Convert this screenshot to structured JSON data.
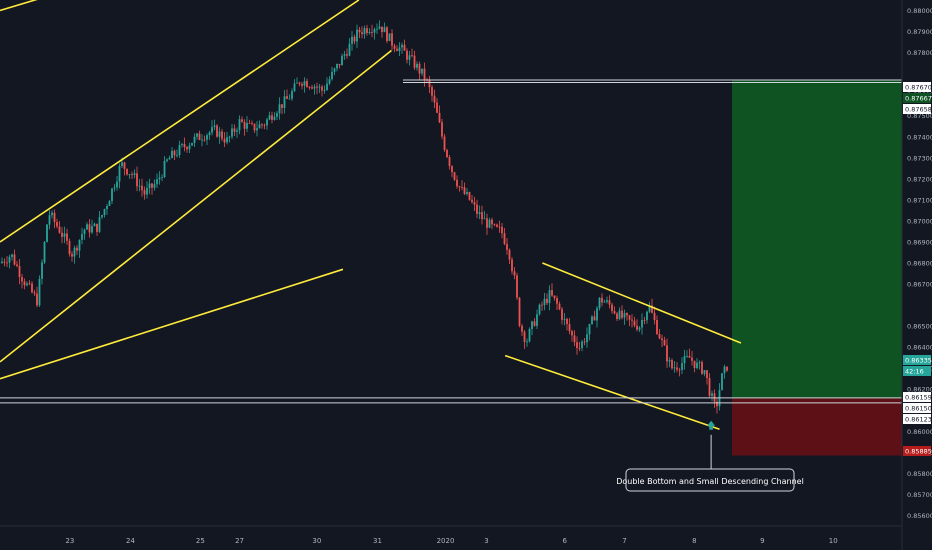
{
  "chart_data": {
    "type": "candlestick",
    "instrument_note": "",
    "y_axis": {
      "range": [
        0.8555,
        0.8805
      ],
      "tick_labels": [
        "0.88000",
        "0.87900",
        "0.87800",
        "0.87600",
        "0.87500",
        "0.87400",
        "0.87300",
        "0.87200",
        "0.87100",
        "0.87000",
        "0.86900",
        "0.86800",
        "0.86700",
        "0.86500",
        "0.86400",
        "0.86300",
        "0.86200",
        "0.86000",
        "0.85900",
        "0.85800",
        "0.85700",
        "0.85600"
      ],
      "tick_values": [
        0.88,
        0.879,
        0.878,
        0.876,
        0.875,
        0.874,
        0.873,
        0.872,
        0.871,
        0.87,
        0.869,
        0.868,
        0.867,
        0.865,
        0.864,
        0.863,
        0.862,
        0.86,
        0.859,
        0.858,
        0.857,
        0.856
      ]
    },
    "x_axis": {
      "tick_labels": [
        "23",
        "24",
        "25",
        "27",
        "30",
        "31",
        "2020",
        "3",
        "6",
        "7",
        "8",
        "9",
        "10"
      ],
      "tick_positions": [
        0.075,
        0.14,
        0.215,
        0.257,
        0.34,
        0.405,
        0.478,
        0.522,
        0.606,
        0.67,
        0.745,
        0.818,
        0.894
      ]
    },
    "price_tags": [
      {
        "value": "0.87670",
        "style": "white"
      },
      {
        "value": "0.87667",
        "style": "green"
      },
      {
        "value": "0.87658",
        "style": "white"
      },
      {
        "value": "0.86335",
        "style": "teal"
      },
      {
        "value": "42:16",
        "style": "teal-sub"
      },
      {
        "value": "0.86159",
        "style": "white"
      },
      {
        "value": "0.86150",
        "style": "white"
      },
      {
        "value": "0.86123",
        "style": "white"
      },
      {
        "value": "0.85885",
        "style": "red"
      }
    ],
    "hlines": [
      0.8767,
      0.87658,
      0.86159,
      0.86135
    ],
    "position": {
      "entry": 0.86159,
      "take_profit": 0.87667,
      "stop_loss": 0.85885
    },
    "trendlines": [
      {
        "name": "upper-channel-top",
        "from": [
          0.0,
          0.88
        ],
        "to": [
          0.075,
          0.881
        ]
      },
      {
        "name": "rising-channel-top",
        "from": [
          0.0,
          0.869
        ],
        "to": [
          0.385,
          0.8805
        ]
      },
      {
        "name": "rising-channel-bottom",
        "from": [
          0.0,
          0.8633
        ],
        "to": [
          0.42,
          0.8781
        ]
      },
      {
        "name": "support-line",
        "from": [
          0.0,
          0.8625
        ],
        "to": [
          0.368,
          0.8677
        ]
      },
      {
        "name": "descending-channel-top",
        "from": [
          0.582,
          0.868
        ],
        "to": [
          0.795,
          0.8642
        ]
      },
      {
        "name": "descending-channel-bottom",
        "from": [
          0.542,
          0.8636
        ],
        "to": [
          0.772,
          0.8601
        ]
      }
    ],
    "price_path": [
      [
        0.0,
        0.868
      ],
      [
        0.012,
        0.8684
      ],
      [
        0.025,
        0.8672
      ],
      [
        0.04,
        0.8662
      ],
      [
        0.052,
        0.8704
      ],
      [
        0.065,
        0.8695
      ],
      [
        0.078,
        0.8684
      ],
      [
        0.09,
        0.8696
      ],
      [
        0.104,
        0.8697
      ],
      [
        0.118,
        0.8712
      ],
      [
        0.13,
        0.8727
      ],
      [
        0.142,
        0.8722
      ],
      [
        0.155,
        0.8713
      ],
      [
        0.168,
        0.8718
      ],
      [
        0.18,
        0.8729
      ],
      [
        0.193,
        0.8734
      ],
      [
        0.206,
        0.8738
      ],
      [
        0.218,
        0.8741
      ],
      [
        0.231,
        0.8743
      ],
      [
        0.244,
        0.8738
      ],
      [
        0.257,
        0.8747
      ],
      [
        0.27,
        0.8744
      ],
      [
        0.283,
        0.8746
      ],
      [
        0.296,
        0.8753
      ],
      [
        0.309,
        0.8758
      ],
      [
        0.322,
        0.8767
      ],
      [
        0.335,
        0.8765
      ],
      [
        0.346,
        0.8762
      ],
      [
        0.36,
        0.8772
      ],
      [
        0.372,
        0.8781
      ],
      [
        0.385,
        0.879
      ],
      [
        0.396,
        0.8792
      ],
      [
        0.408,
        0.8793
      ],
      [
        0.42,
        0.8785
      ],
      [
        0.432,
        0.8781
      ],
      [
        0.444,
        0.8775
      ],
      [
        0.456,
        0.8768
      ],
      [
        0.463,
        0.876
      ],
      [
        0.468,
        0.8752
      ],
      [
        0.476,
        0.8737
      ],
      [
        0.485,
        0.8724
      ],
      [
        0.494,
        0.8715
      ],
      [
        0.504,
        0.871
      ],
      [
        0.512,
        0.8704
      ],
      [
        0.52,
        0.87
      ],
      [
        0.53,
        0.8696
      ],
      [
        0.538,
        0.8695
      ],
      [
        0.546,
        0.8686
      ],
      [
        0.552,
        0.8672
      ],
      [
        0.558,
        0.865
      ],
      [
        0.565,
        0.8643
      ],
      [
        0.572,
        0.8651
      ],
      [
        0.58,
        0.8659
      ],
      [
        0.59,
        0.8665
      ],
      [
        0.598,
        0.866
      ],
      [
        0.606,
        0.8652
      ],
      [
        0.614,
        0.8645
      ],
      [
        0.622,
        0.864
      ],
      [
        0.632,
        0.8648
      ],
      [
        0.644,
        0.8663
      ],
      [
        0.654,
        0.866
      ],
      [
        0.664,
        0.8655
      ],
      [
        0.676,
        0.8652
      ],
      [
        0.686,
        0.865
      ],
      [
        0.696,
        0.866
      ],
      [
        0.704,
        0.865
      ],
      [
        0.712,
        0.864
      ],
      [
        0.72,
        0.863
      ],
      [
        0.73,
        0.8632
      ],
      [
        0.74,
        0.8635
      ],
      [
        0.748,
        0.8631
      ],
      [
        0.756,
        0.8629
      ],
      [
        0.762,
        0.8618
      ],
      [
        0.768,
        0.861
      ],
      [
        0.774,
        0.8625
      ],
      [
        0.782,
        0.8633
      ]
    ],
    "annotation": {
      "text": "Double Bottom and Small  Descending Channel",
      "arrow_at": [
        0.763,
        0.8605
      ]
    },
    "grid": false
  }
}
